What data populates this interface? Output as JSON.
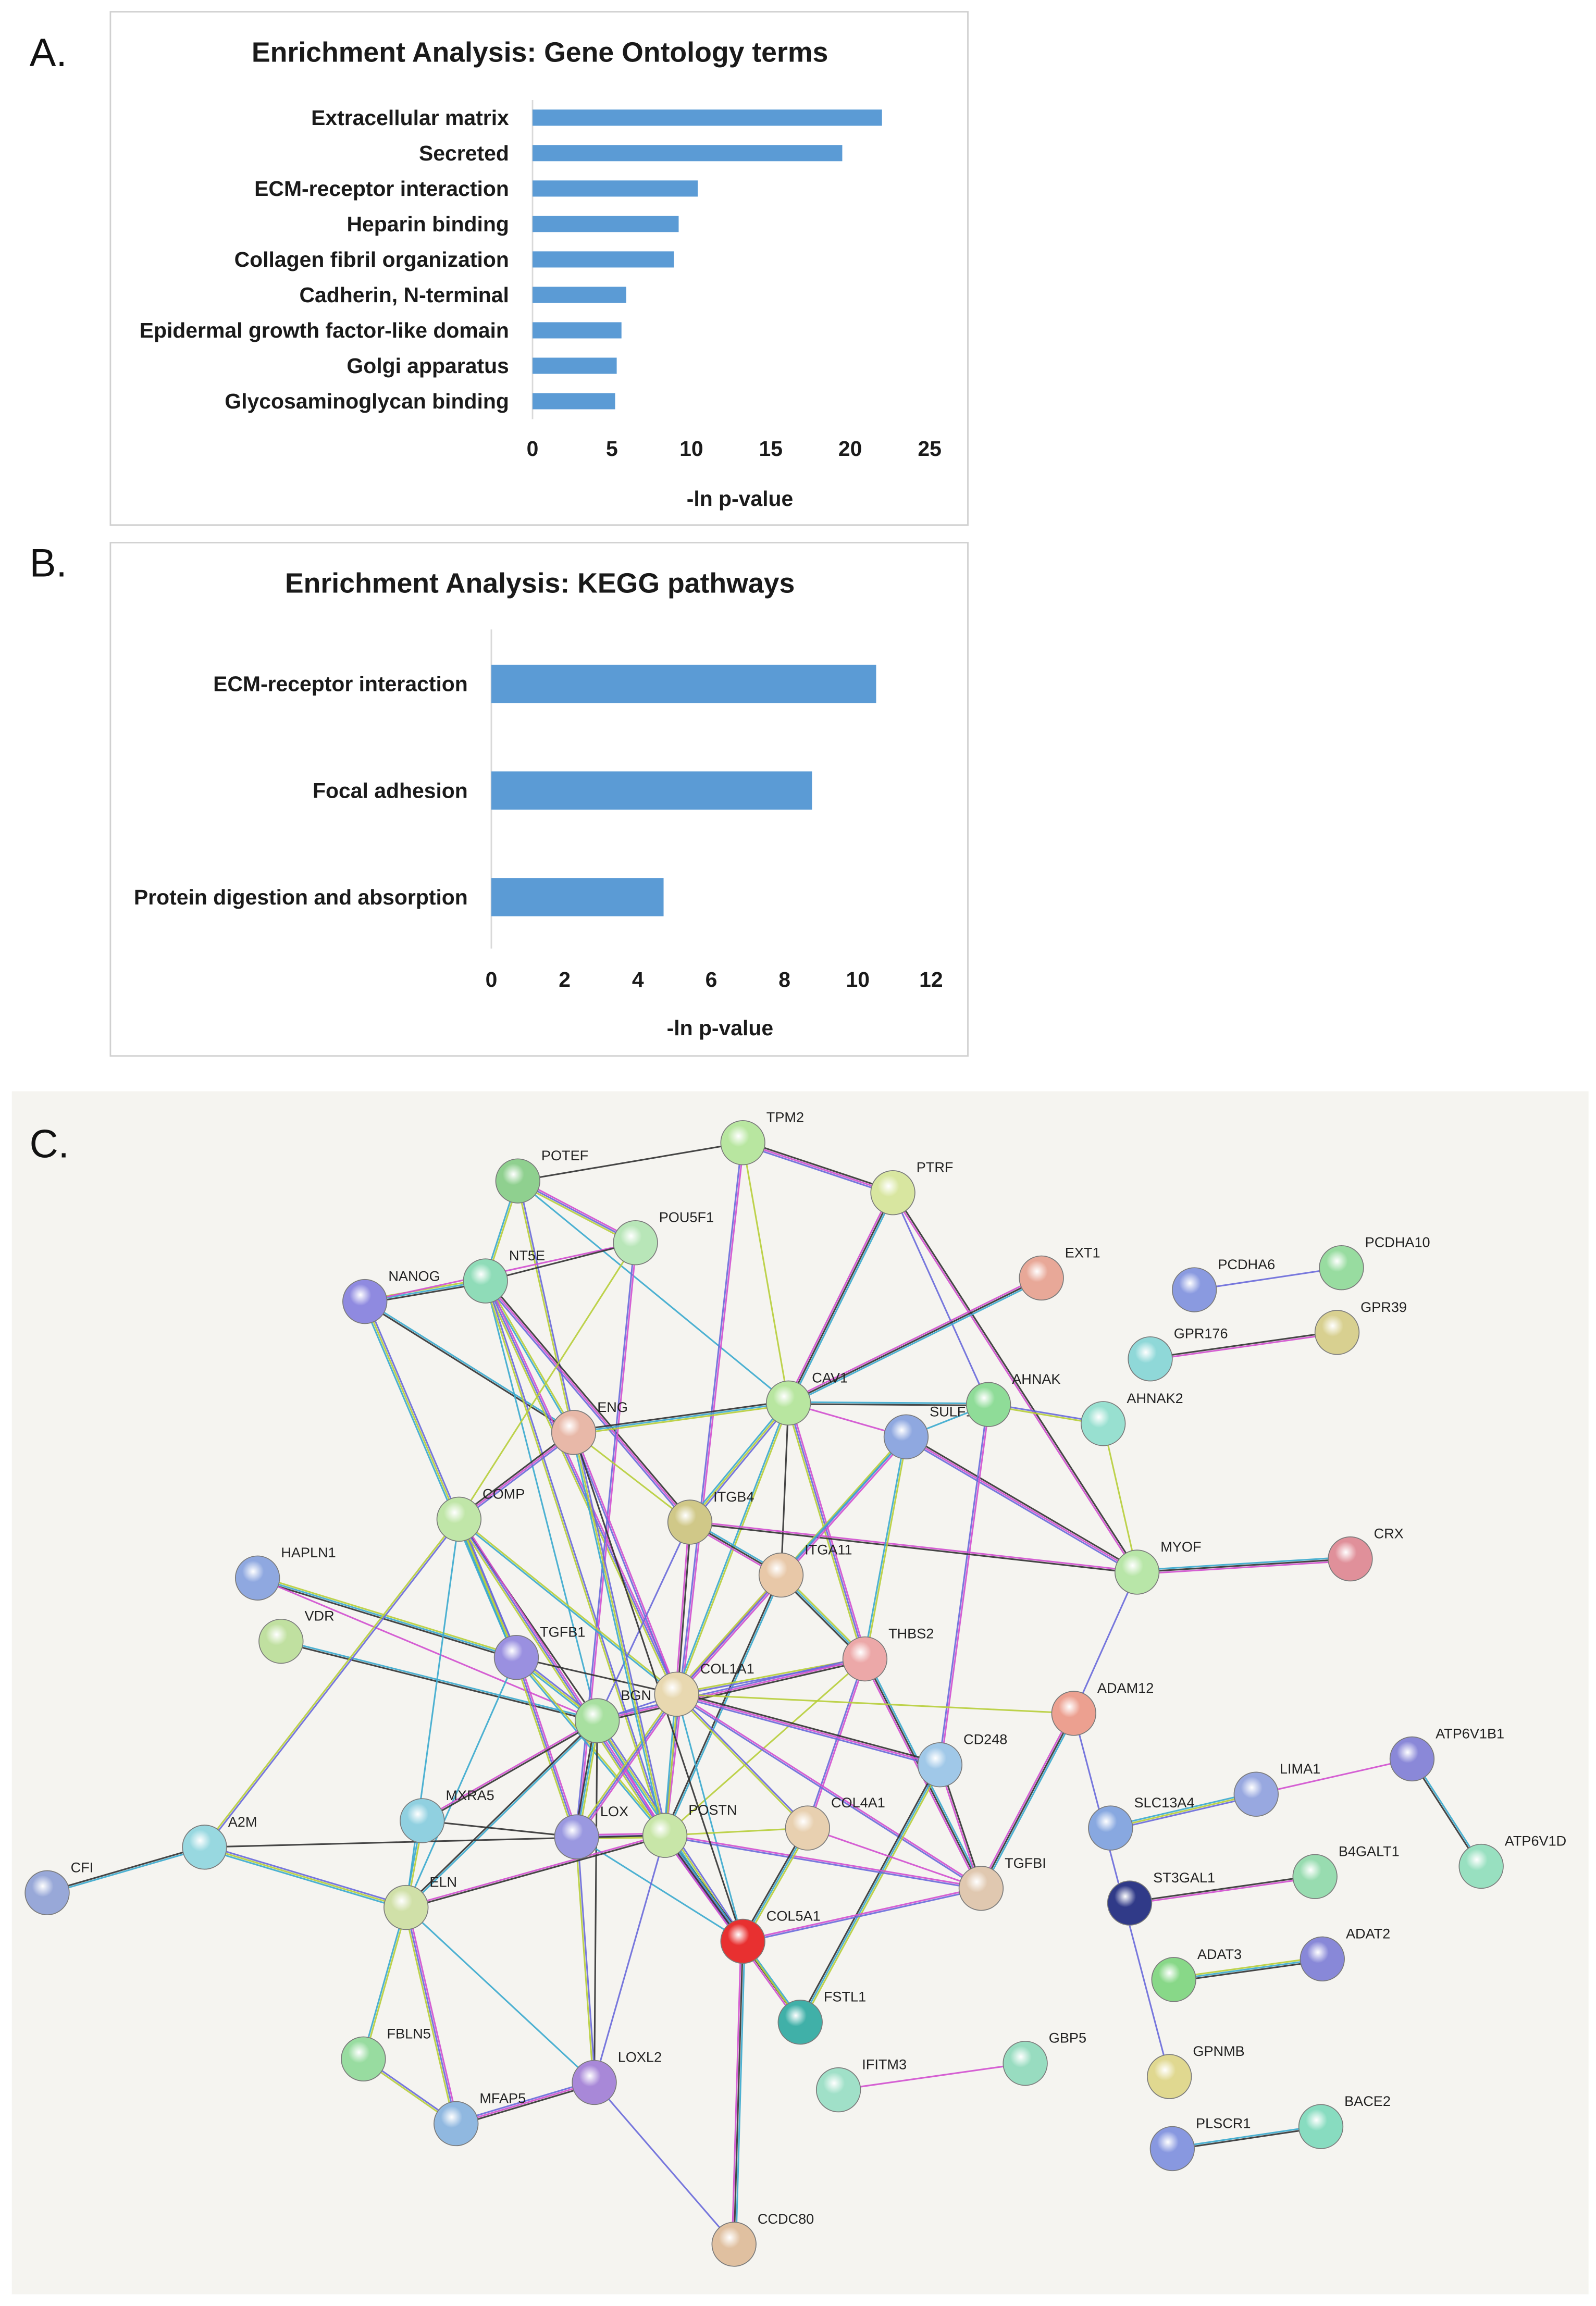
{
  "chart_data": [
    {
      "type": "bar",
      "title": "Enrichment Analysis: Gene Ontology terms",
      "categories": [
        "Extracellular matrix",
        "Secreted",
        "ECM-receptor interaction",
        "Heparin binding",
        "Collagen fibril organization",
        "Cadherin, N-terminal",
        "Epidermal growth factor-like domain",
        "Golgi apparatus",
        "Glycosaminoglycan binding"
      ],
      "values": [
        22.0,
        19.5,
        10.4,
        9.2,
        8.9,
        5.9,
        5.6,
        5.3,
        5.2
      ],
      "xlabel": "-ln p-value",
      "xlim": [
        0,
        25
      ],
      "xticks": [
        0,
        5,
        10,
        15,
        20,
        25
      ],
      "color": "#5b9bd5"
    },
    {
      "type": "bar",
      "title": "Enrichment Analysis: KEGG pathways",
      "categories": [
        "ECM-receptor interaction",
        "Focal adhesion",
        "Protein digestion and absorption"
      ],
      "values": [
        10.5,
        8.75,
        4.7
      ],
      "xlabel": "-ln p-value",
      "xlim": [
        0,
        12
      ],
      "xticks": [
        0,
        2,
        4,
        6,
        8,
        10,
        12
      ],
      "color": "#5b9bd5"
    }
  ],
  "panel_labels": [
    "A.",
    "B.",
    "C."
  ],
  "network": {
    "nodes": [
      "POTEF",
      "TPM2",
      "PTRF",
      "POU5F1",
      "NT5E",
      "NANOG",
      "EXT1",
      "PCDHA6",
      "PCDHA10",
      "GPR39",
      "GPR176",
      "CAV1",
      "ENG",
      "SULF1",
      "AHNAK",
      "AHNAK2",
      "COMP",
      "ITGB4",
      "HAPLN1",
      "ITGA11",
      "MYOF",
      "CRX",
      "VDR",
      "TGFB1",
      "THBS2",
      "BGN",
      "COL1A1",
      "ADAM12",
      "CD248",
      "ATP6V1B1",
      "LIMA1",
      "MXRA5",
      "LOX",
      "POSTN",
      "COL4A1",
      "A2M",
      "SLC13A4",
      "ATP6V1D",
      "CFI",
      "ELN",
      "TGFBI",
      "B4GALT1",
      "ST3GAL1",
      "COL5A1",
      "ADAT3",
      "ADAT2",
      "FSTL1",
      "FBLN5",
      "GBP5",
      "LOXL2",
      "IFITM3",
      "GPNMB",
      "MFAP5",
      "PLSCR1",
      "BACE2",
      "CCDC80"
    ]
  }
}
